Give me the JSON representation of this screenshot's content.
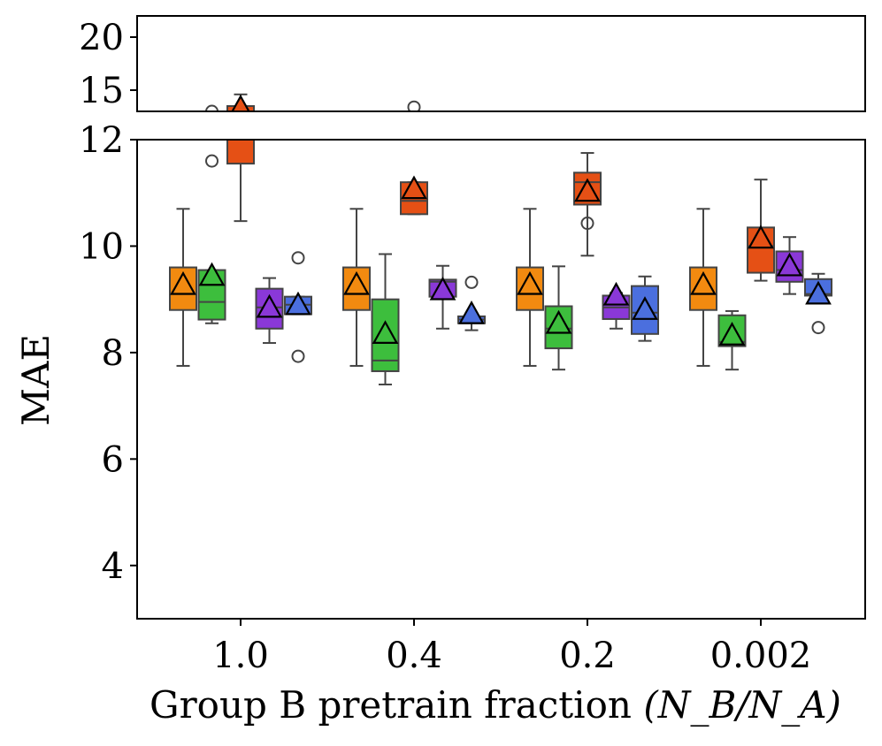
{
  "chart_data": {
    "type": "box",
    "xlabel": "Group B pretrain fraction",
    "xlabel_math": "(N_B/N_A)",
    "ylabel": "MAE",
    "categories": [
      "1.0",
      "0.4",
      "0.2",
      "0.002"
    ],
    "broken_axis": true,
    "ylim_lower": [
      3,
      12
    ],
    "ylim_upper": [
      13,
      22
    ],
    "yticks_lower": [
      "4",
      "6",
      "8",
      "10",
      "12"
    ],
    "yticks_upper": [
      "15",
      "20"
    ],
    "grid": false,
    "mean_marker": "triangle",
    "series": [
      {
        "color": "#F28A10",
        "boxes": [
          {
            "whislo": 7.75,
            "q1": 8.8,
            "med": 9.1,
            "q3": 9.6,
            "whishi": 10.7,
            "mean": 9.25,
            "fliers": []
          },
          {
            "whislo": 7.75,
            "q1": 8.8,
            "med": 9.1,
            "q3": 9.6,
            "whishi": 10.7,
            "mean": 9.25,
            "fliers": []
          },
          {
            "whislo": 7.75,
            "q1": 8.8,
            "med": 9.1,
            "q3": 9.6,
            "whishi": 10.7,
            "mean": 9.25,
            "fliers": []
          },
          {
            "whislo": 7.75,
            "q1": 8.8,
            "med": 9.1,
            "q3": 9.6,
            "whishi": 10.7,
            "mean": 9.25,
            "fliers": []
          }
        ]
      },
      {
        "color": "#3DBE3D",
        "boxes": [
          {
            "whislo": 8.55,
            "q1": 8.62,
            "med": 8.95,
            "q3": 9.55,
            "whishi": 9.55,
            "mean": 9.42,
            "fliers": [
              11.6,
              13.0
            ]
          },
          {
            "whislo": 7.4,
            "q1": 7.65,
            "med": 7.85,
            "q3": 9.0,
            "whishi": 9.85,
            "mean": 8.33,
            "fliers": []
          },
          {
            "whislo": 7.68,
            "q1": 8.08,
            "med": 8.45,
            "q3": 8.87,
            "whishi": 9.62,
            "mean": 8.52,
            "fliers": []
          },
          {
            "whislo": 7.68,
            "q1": 8.12,
            "med": 8.2,
            "q3": 8.7,
            "whishi": 8.78,
            "mean": 8.3,
            "fliers": []
          }
        ]
      },
      {
        "color": "#E55015",
        "boxes": [
          {
            "whislo": 10.47,
            "q1": 11.55,
            "med": 12.2,
            "q3": 13.5,
            "whishi": 14.6,
            "mean": 13.2,
            "fliers": []
          },
          {
            "whislo": 10.6,
            "q1": 10.6,
            "med": 10.85,
            "q3": 11.2,
            "whishi": 11.2,
            "mean": 11.05,
            "fliers": [
              13.4
            ]
          },
          {
            "whislo": 9.82,
            "q1": 10.78,
            "med": 11.2,
            "q3": 11.38,
            "whishi": 11.75,
            "mean": 11.0,
            "fliers": [
              10.43
            ]
          },
          {
            "whislo": 9.35,
            "q1": 9.5,
            "med": 10.0,
            "q3": 10.35,
            "whishi": 11.25,
            "mean": 10.12,
            "fliers": []
          }
        ]
      },
      {
        "color": "#8A38D8",
        "boxes": [
          {
            "whislo": 8.18,
            "q1": 8.45,
            "med": 8.85,
            "q3": 9.2,
            "whishi": 9.4,
            "mean": 8.82,
            "fliers": []
          },
          {
            "whislo": 8.45,
            "q1": 9.05,
            "med": 9.33,
            "q3": 9.37,
            "whishi": 9.63,
            "mean": 9.15,
            "fliers": []
          },
          {
            "whislo": 8.45,
            "q1": 8.63,
            "med": 8.85,
            "q3": 9.07,
            "whishi": 9.12,
            "mean": 9.05,
            "fliers": []
          },
          {
            "whislo": 9.1,
            "q1": 9.33,
            "med": 9.55,
            "q3": 9.9,
            "whishi": 10.17,
            "mean": 9.6,
            "fliers": []
          }
        ]
      },
      {
        "color": "#4B6FDE",
        "boxes": [
          {
            "whislo": 8.72,
            "q1": 8.72,
            "med": 8.9,
            "q3": 9.05,
            "whishi": 9.05,
            "mean": 8.87,
            "fliers": [
              7.93,
              9.78
            ]
          },
          {
            "whislo": 8.42,
            "q1": 8.55,
            "med": 8.62,
            "q3": 8.68,
            "whishi": 8.68,
            "mean": 8.7,
            "fliers": [
              9.32
            ]
          },
          {
            "whislo": 8.22,
            "q1": 8.35,
            "med": 8.75,
            "q3": 9.25,
            "whishi": 9.43,
            "mean": 8.78,
            "fliers": []
          },
          {
            "whislo": 8.92,
            "q1": 9.07,
            "med": 9.1,
            "q3": 9.38,
            "whishi": 9.48,
            "mean": 9.07,
            "fliers": [
              8.47
            ]
          }
        ]
      }
    ]
  }
}
